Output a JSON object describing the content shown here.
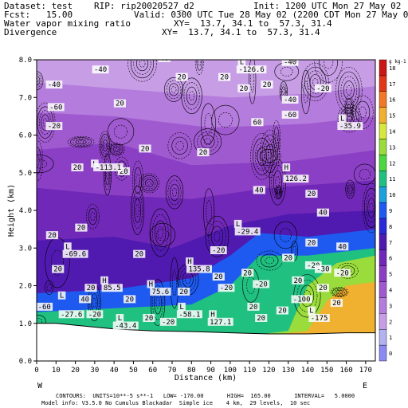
{
  "header": {
    "dataset": "Dataset: test",
    "rip": "RIP: rip20020527_d2",
    "init": "Init: 1200 UTC Mon 27 May 02",
    "fcst": "Fcst:   15.00",
    "valid": "Valid: 0300 UTC Tue 28 May 02 (2200 CDT Mon 27 May 02)",
    "field1": "Water vapor mixing ratio",
    "field2": "Divergence",
    "xy1": "XY=  13.7, 34.1 to  57.3, 31.4",
    "xy2": "XY=  13.7, 34.1 to  57.3, 31.4"
  },
  "footer": {
    "line1": "CONTOURS:  UNITS=10**-5 s**-1   LOW= -170.00       HIGH=  165.00       INTERVAL=   5.0000",
    "line2": "Model info: V3.5.0 No Cumulus Blackadar  Simple ice    4 km,  29 levels,  10 sec"
  },
  "colorbar": {
    "unit": "g kg-1",
    "labels": [
      "0",
      "1",
      "2",
      "3",
      "4",
      "5",
      "6",
      "7",
      "8",
      "9",
      "10",
      "11",
      "12",
      "13",
      "14",
      "15",
      "16",
      "17",
      "18"
    ],
    "colors": [
      "#8a8af2",
      "#b2b2f0",
      "#c79ee6",
      "#b47cdc",
      "#a05ad0",
      "#8a3fc4",
      "#7028b8",
      "#501ab0",
      "#2a2ad8",
      "#1e5af0",
      "#1ea0dc",
      "#20c080",
      "#4cd640",
      "#9adc3c",
      "#d8e640",
      "#f0b030",
      "#f07828",
      "#e03818",
      "#c81818"
    ]
  },
  "chart_data": {
    "type": "heatmap",
    "title": "",
    "xlabel": "Distance (km)",
    "ylabel": "Height (km)",
    "xlim": [
      0,
      175
    ],
    "ylim": [
      0,
      8
    ],
    "xticks": [
      0,
      10,
      20,
      30,
      40,
      50,
      60,
      70,
      80,
      90,
      100,
      110,
      120,
      130,
      140,
      150,
      160,
      170
    ],
    "yticks": [
      "0.0",
      "1.0",
      "2.0",
      "3.0",
      "4.0",
      "5.0",
      "6.0",
      "7.0",
      "8.0"
    ],
    "end_labels": {
      "left": "W",
      "right": "E"
    },
    "grid": false,
    "legend": "right",
    "colorscale_units": "g kg-1",
    "contour_field": "Divergence",
    "contour_units": "10**-5 s**-1",
    "contour_low": -170.0,
    "contour_high": 165.0,
    "contour_interval": 5.0,
    "terrain": [
      {
        "x": 0,
        "y": 1.0
      },
      {
        "x": 10,
        "y": 1.0
      },
      {
        "x": 20,
        "y": 0.95
      },
      {
        "x": 40,
        "y": 0.85
      },
      {
        "x": 60,
        "y": 0.8
      },
      {
        "x": 80,
        "y": 0.78
      },
      {
        "x": 100,
        "y": 0.75
      },
      {
        "x": 120,
        "y": 0.72
      },
      {
        "x": 140,
        "y": 0.72
      },
      {
        "x": 160,
        "y": 0.75
      },
      {
        "x": 175,
        "y": 0.75
      }
    ],
    "moisture_layers": [
      {
        "value": 15,
        "top": [
          {
            "x": 140,
            "y": 0.8
          },
          {
            "x": 150,
            "y": 1.6
          },
          {
            "x": 160,
            "y": 2.0
          },
          {
            "x": 175,
            "y": 2.1
          }
        ]
      },
      {
        "value": 13,
        "top": [
          {
            "x": 130,
            "y": 0.8
          },
          {
            "x": 140,
            "y": 2.0
          },
          {
            "x": 155,
            "y": 2.6
          },
          {
            "x": 175,
            "y": 2.8
          }
        ]
      },
      {
        "value": 11,
        "top": [
          {
            "x": 0,
            "y": 1.3
          },
          {
            "x": 40,
            "y": 1.4
          },
          {
            "x": 80,
            "y": 1.5
          },
          {
            "x": 100,
            "y": 2.0
          },
          {
            "x": 115,
            "y": 2.8
          },
          {
            "x": 140,
            "y": 2.8
          },
          {
            "x": 175,
            "y": 3.0
          }
        ]
      },
      {
        "value": 9,
        "top": [
          {
            "x": 0,
            "y": 1.8
          },
          {
            "x": 40,
            "y": 1.9
          },
          {
            "x": 80,
            "y": 2.2
          },
          {
            "x": 100,
            "y": 2.8
          },
          {
            "x": 115,
            "y": 3.4
          },
          {
            "x": 140,
            "y": 3.3
          },
          {
            "x": 175,
            "y": 3.5
          }
        ]
      },
      {
        "value": 7,
        "top": [
          {
            "x": 0,
            "y": 3.2
          },
          {
            "x": 40,
            "y": 3.3
          },
          {
            "x": 70,
            "y": 3.0
          },
          {
            "x": 100,
            "y": 3.6
          },
          {
            "x": 130,
            "y": 3.9
          },
          {
            "x": 175,
            "y": 4.0
          }
        ]
      },
      {
        "value": 6,
        "top": [
          {
            "x": 0,
            "y": 4.6
          },
          {
            "x": 40,
            "y": 4.4
          },
          {
            "x": 80,
            "y": 4.3
          },
          {
            "x": 120,
            "y": 4.6
          },
          {
            "x": 175,
            "y": 4.8
          }
        ]
      },
      {
        "value": 5,
        "top": [
          {
            "x": 0,
            "y": 5.6
          },
          {
            "x": 40,
            "y": 5.8
          },
          {
            "x": 80,
            "y": 5.2
          },
          {
            "x": 130,
            "y": 5.3
          },
          {
            "x": 175,
            "y": 5.6
          }
        ]
      },
      {
        "value": 4,
        "top": [
          {
            "x": 0,
            "y": 6.6
          },
          {
            "x": 40,
            "y": 6.5
          },
          {
            "x": 90,
            "y": 6.2
          },
          {
            "x": 140,
            "y": 6.3
          },
          {
            "x": 175,
            "y": 6.5
          }
        ]
      },
      {
        "value": 3,
        "top": [
          {
            "x": 0,
            "y": 7.4
          },
          {
            "x": 50,
            "y": 7.2
          },
          {
            "x": 100,
            "y": 7.0
          },
          {
            "x": 140,
            "y": 7.1
          },
          {
            "x": 175,
            "y": 7.3
          }
        ]
      },
      {
        "value": 2,
        "top": [
          {
            "x": 0,
            "y": 8.0
          },
          {
            "x": 175,
            "y": 8.0
          }
        ]
      }
    ],
    "annotations": [
      {
        "text": "-40",
        "x": 9,
        "y": 7.3
      },
      {
        "text": "-60",
        "x": 10,
        "y": 6.7
      },
      {
        "text": "-20",
        "x": 9,
        "y": 6.2
      },
      {
        "text": "-40",
        "x": 33,
        "y": 7.7
      },
      {
        "text": "20",
        "x": 43,
        "y": 6.8
      },
      {
        "text": "40",
        "x": 66,
        "y": 8.0
      },
      {
        "text": "20",
        "x": 75,
        "y": 7.5
      },
      {
        "text": "20",
        "x": 97,
        "y": 7.5
      },
      {
        "text": "L",
        "x": 106,
        "y": 7.9
      },
      {
        "text": "-126.6",
        "x": 111,
        "y": 7.7
      },
      {
        "text": "20",
        "x": 107,
        "y": 7.2
      },
      {
        "text": "60",
        "x": 114,
        "y": 6.3
      },
      {
        "text": "-40",
        "x": 131,
        "y": 7.9
      },
      {
        "text": "20",
        "x": 119,
        "y": 7.3
      },
      {
        "text": "-40",
        "x": 131,
        "y": 6.9
      },
      {
        "text": "-60",
        "x": 131,
        "y": 6.5
      },
      {
        "text": "-20",
        "x": 148,
        "y": 7.2
      },
      {
        "text": "L",
        "x": 158,
        "y": 6.4
      },
      {
        "text": "-35.9",
        "x": 162,
        "y": 6.2
      },
      {
        "text": "20",
        "x": 45,
        "y": 5.0
      },
      {
        "text": "L",
        "x": 30,
        "y": 5.2
      },
      {
        "text": "-113.1",
        "x": 37,
        "y": 5.1
      },
      {
        "text": "20",
        "x": 21,
        "y": 5.1
      },
      {
        "text": "20",
        "x": 56,
        "y": 5.6
      },
      {
        "text": "20",
        "x": 86,
        "y": 5.5
      },
      {
        "text": "H",
        "x": 129,
        "y": 5.1
      },
      {
        "text": "126.2",
        "x": 134,
        "y": 4.8
      },
      {
        "text": "40",
        "x": 115,
        "y": 4.5
      },
      {
        "text": "L",
        "x": 104,
        "y": 3.6
      },
      {
        "text": "-29.4",
        "x": 109,
        "y": 3.4
      },
      {
        "text": "20",
        "x": 142,
        "y": 4.4
      },
      {
        "text": "40",
        "x": 148,
        "y": 3.9
      },
      {
        "text": "20",
        "x": 142,
        "y": 3.1
      },
      {
        "text": "40",
        "x": 158,
        "y": 3.0
      },
      {
        "text": "L",
        "x": 16,
        "y": 3.0
      },
      {
        "text": "-69.6",
        "x": 20,
        "y": 2.8
      },
      {
        "text": "20",
        "x": 8,
        "y": 3.3
      },
      {
        "text": "20",
        "x": 23,
        "y": 3.5
      },
      {
        "text": "H",
        "x": 79,
        "y": 2.6
      },
      {
        "text": "135.8",
        "x": 84,
        "y": 2.4
      },
      {
        "text": "20",
        "x": 53,
        "y": 2.8
      },
      {
        "text": "-20",
        "x": 94,
        "y": 2.9
      },
      {
        "text": "20",
        "x": 130,
        "y": 2.7
      },
      {
        "text": "-20",
        "x": 143,
        "y": 2.5
      },
      {
        "text": "20",
        "x": 135,
        "y": 2.1
      },
      {
        "text": "20",
        "x": 94,
        "y": 2.2
      },
      {
        "text": "20",
        "x": 109,
        "y": 2.3
      },
      {
        "text": "-20",
        "x": 116,
        "y": 2.0
      },
      {
        "text": "20",
        "x": 11,
        "y": 2.4
      },
      {
        "text": "H",
        "x": 35,
        "y": 2.1
      },
      {
        "text": "85.5",
        "x": 39,
        "y": 1.9
      },
      {
        "text": "H",
        "x": 59,
        "y": 2.0
      },
      {
        "text": "75.6",
        "x": 64,
        "y": 1.8
      },
      {
        "text": "20",
        "x": 28,
        "y": 1.9
      },
      {
        "text": "20",
        "x": 48,
        "y": 1.6
      },
      {
        "text": "20",
        "x": 76,
        "y": 1.8
      },
      {
        "text": "-20",
        "x": 98,
        "y": 1.9
      },
      {
        "text": "-30",
        "x": 148,
        "y": 2.4
      },
      {
        "text": "20",
        "x": 148,
        "y": 1.9
      },
      {
        "text": "-20",
        "x": 158,
        "y": 2.3
      },
      {
        "text": "-100",
        "x": 137,
        "y": 1.6
      },
      {
        "text": "L",
        "x": 13,
        "y": 1.7
      },
      {
        "text": "-27.6",
        "x": 18,
        "y": 1.2
      },
      {
        "text": "-60",
        "x": 4,
        "y": 1.4
      },
      {
        "text": "-20",
        "x": 30,
        "y": 1.2
      },
      {
        "text": "40",
        "x": 25,
        "y": 1.6
      },
      {
        "text": "L",
        "x": 43,
        "y": 1.1
      },
      {
        "text": "-43.4",
        "x": 46,
        "y": 0.9
      },
      {
        "text": "L",
        "x": 75,
        "y": 1.4
      },
      {
        "text": "-58.1",
        "x": 79,
        "y": 1.2
      },
      {
        "text": "H",
        "x": 91,
        "y": 1.2
      },
      {
        "text": "127.1",
        "x": 95,
        "y": 1.0
      },
      {
        "text": "20",
        "x": 112,
        "y": 1.4
      },
      {
        "text": "20",
        "x": 127,
        "y": 1.3
      },
      {
        "text": "L",
        "x": 142,
        "y": 1.3
      },
      {
        "text": "-175",
        "x": 146,
        "y": 1.1
      },
      {
        "text": "20",
        "x": 155,
        "y": 1.5
      },
      {
        "text": "20",
        "x": 58,
        "y": 1.1
      },
      {
        "text": "-20",
        "x": 68,
        "y": 1.0
      },
      {
        "text": "20",
        "x": 116,
        "y": 1.1
      }
    ]
  }
}
